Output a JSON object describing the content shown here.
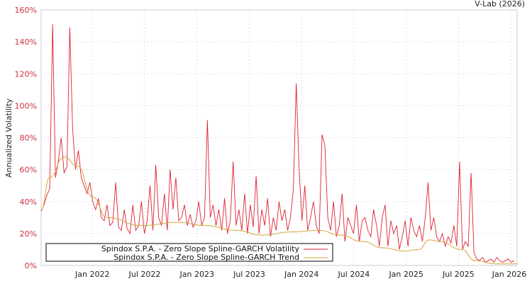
{
  "chart_data": {
    "type": "line",
    "credit": "V-Lab (2026)",
    "ylabel": "Annualized Volatility",
    "xlabel": "",
    "ylim": [
      0,
      160
    ],
    "xlim": [
      2021.51,
      2026.06
    ],
    "y_ticks": [
      {
        "v": 0,
        "label": "0%"
      },
      {
        "v": 20,
        "label": "20%"
      },
      {
        "v": 40,
        "label": "40%"
      },
      {
        "v": 60,
        "label": "60%"
      },
      {
        "v": 80,
        "label": "80%"
      },
      {
        "v": 100,
        "label": "100%"
      },
      {
        "v": 120,
        "label": "120%"
      },
      {
        "v": 140,
        "label": "140%"
      },
      {
        "v": 160,
        "label": "160%"
      }
    ],
    "x_ticks": [
      {
        "v": 2022.0,
        "label": "Jan 2022"
      },
      {
        "v": 2022.5,
        "label": "Jul 2022"
      },
      {
        "v": 2023.0,
        "label": "Jan 2023"
      },
      {
        "v": 2023.5,
        "label": "Jul 2023"
      },
      {
        "v": 2024.0,
        "label": "Jan 2024"
      },
      {
        "v": 2024.5,
        "label": "Jul 2024"
      },
      {
        "v": 2025.0,
        "label": "Jan 2025"
      },
      {
        "v": 2025.5,
        "label": "Jul 2025"
      },
      {
        "v": 2026.0,
        "label": "Jan 2026"
      }
    ],
    "grid": true,
    "legend_position": "bottom-left",
    "series": [
      {
        "name": "Spindox S.P.A. - Zero Slope Spline-GARCH Volatility",
        "color": "#dd2233",
        "x_start": 2021.51,
        "x_step": 0.0274,
        "values": [
          34,
          38,
          44,
          48,
          151,
          55,
          65,
          80,
          58,
          62,
          149,
          85,
          60,
          72,
          55,
          50,
          45,
          52,
          40,
          35,
          42,
          30,
          28,
          38,
          25,
          27,
          52,
          24,
          22,
          35,
          23,
          20,
          38,
          22,
          25,
          40,
          20,
          28,
          50,
          22,
          63,
          30,
          25,
          45,
          22,
          60,
          35,
          55,
          28,
          30,
          38,
          25,
          32,
          24,
          28,
          40,
          25,
          30,
          91,
          30,
          38,
          25,
          35,
          22,
          42,
          20,
          28,
          65,
          25,
          35,
          22,
          45,
          20,
          38,
          24,
          56,
          20,
          35,
          25,
          42,
          18,
          30,
          22,
          40,
          28,
          35,
          22,
          30,
          48,
          114,
          60,
          28,
          50,
          22,
          30,
          40,
          25,
          20,
          82,
          75,
          30,
          22,
          40,
          18,
          25,
          45,
          15,
          30,
          25,
          20,
          38,
          15,
          28,
          30,
          22,
          18,
          35,
          25,
          12,
          30,
          38,
          12,
          28,
          20,
          25,
          10,
          18,
          28,
          12,
          30,
          22,
          18,
          25,
          15,
          30,
          52,
          22,
          30,
          18,
          15,
          20,
          12,
          18,
          14,
          25,
          12,
          65,
          10,
          15,
          12,
          58,
          8,
          4,
          3,
          5,
          2,
          3,
          4,
          2,
          5,
          3,
          2,
          3,
          4,
          2,
          3
        ]
      },
      {
        "name": "Spindox S.P.A. - Zero Slope Spline-GARCH Trend",
        "color": "#d4a73a",
        "points": [
          [
            2021.51,
            35
          ],
          [
            2021.59,
            55
          ],
          [
            2021.73,
            68
          ],
          [
            2021.86,
            62
          ],
          [
            2022.0,
            43
          ],
          [
            2022.14,
            30
          ],
          [
            2022.47,
            25
          ],
          [
            2022.81,
            27
          ],
          [
            2023.08,
            25
          ],
          [
            2023.36,
            22
          ],
          [
            2023.63,
            19
          ],
          [
            2023.9,
            21
          ],
          [
            2024.17,
            22
          ],
          [
            2024.37,
            19
          ],
          [
            2024.58,
            15
          ],
          [
            2024.78,
            11
          ],
          [
            2024.98,
            9
          ],
          [
            2025.12,
            10
          ],
          [
            2025.22,
            16
          ],
          [
            2025.32,
            15
          ],
          [
            2025.53,
            10
          ],
          [
            2025.66,
            3
          ],
          [
            2025.86,
            1
          ],
          [
            2026.06,
            1
          ]
        ]
      }
    ]
  }
}
